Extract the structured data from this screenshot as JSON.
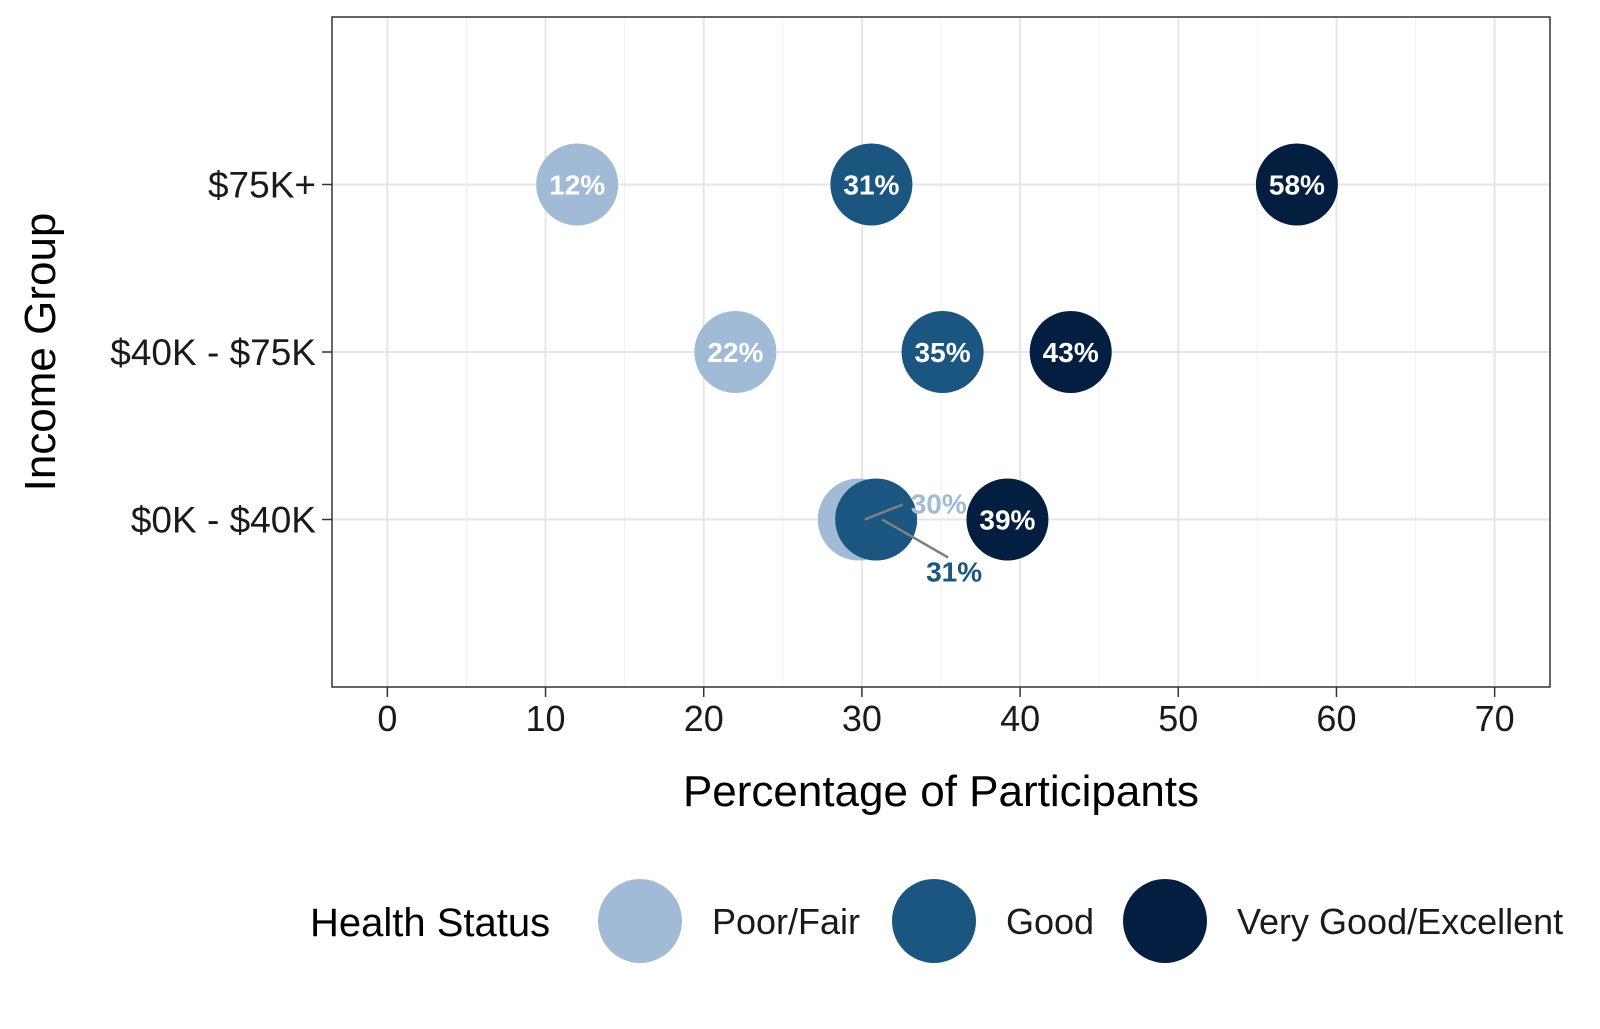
{
  "chart_data": {
    "type": "scatter",
    "title": "",
    "xlabel": "Percentage of Participants",
    "ylabel": "Income Group",
    "xlim": [
      -3.5,
      73.5
    ],
    "xticks": [
      0,
      10,
      20,
      30,
      40,
      50,
      60,
      70
    ],
    "grid": true,
    "categories": [
      "$0K - $40K",
      "$40K - $75K",
      "$75K+"
    ],
    "legend": {
      "title": "Health Status",
      "position": "bottom",
      "entries": [
        "Poor/Fair",
        "Good",
        "Very Good/Excellent"
      ]
    },
    "series": [
      {
        "name": "Poor/Fair",
        "color": "#a1bbd6",
        "label_color": "#a1bbd6",
        "points": [
          {
            "category": "$0K - $40K",
            "x": 29.8,
            "label": "30%"
          },
          {
            "category": "$40K - $75K",
            "x": 22.0,
            "label": "22%"
          },
          {
            "category": "$75K+",
            "x": 12.0,
            "label": "12%"
          }
        ]
      },
      {
        "name": "Good",
        "color": "#1b5680",
        "label_color": "#1b5680",
        "points": [
          {
            "category": "$0K - $40K",
            "x": 30.9,
            "label": "31%"
          },
          {
            "category": "$40K - $75K",
            "x": 35.1,
            "label": "35%"
          },
          {
            "category": "$75K+",
            "x": 30.6,
            "label": "31%"
          }
        ]
      },
      {
        "name": "Very Good/Excellent",
        "color": "#041e42",
        "label_color": "#041e42",
        "points": [
          {
            "category": "$0K - $40K",
            "x": 39.2,
            "label": "39%"
          },
          {
            "category": "$40K - $75K",
            "x": 43.2,
            "label": "43%"
          },
          {
            "category": "$75K+",
            "x": 57.5,
            "label": "58%"
          }
        ]
      }
    ]
  }
}
